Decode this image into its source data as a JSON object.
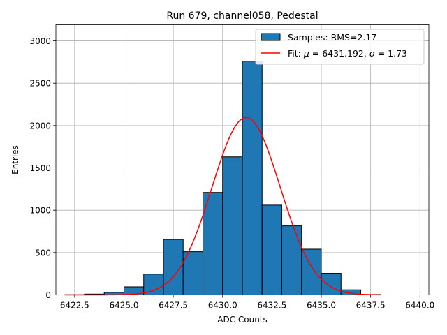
{
  "chart_data": {
    "type": "bar",
    "title": "Run 679, channel058, Pedestal",
    "xlabel": "ADC Counts",
    "ylabel": "Entries",
    "xlim": [
      6421.55,
      6440.45
    ],
    "ylim": [
      0,
      3190
    ],
    "grid": true,
    "legend_placement": "top-right",
    "x_ticks": [
      6422.5,
      6425.0,
      6427.5,
      6430.0,
      6432.5,
      6435.0,
      6437.5,
      6440.0
    ],
    "x_tick_labels": [
      "6422.5",
      "6425.0",
      "6427.5",
      "6430.0",
      "6432.5",
      "6435.0",
      "6437.5",
      "6440.0"
    ],
    "y_ticks": [
      0,
      500,
      1000,
      1500,
      2000,
      2500,
      3000
    ],
    "y_tick_labels": [
      "0",
      "500",
      "1000",
      "1500",
      "2000",
      "2500",
      "3000"
    ],
    "histogram": {
      "name": "Samples: RMS=2.17",
      "color": "#1f77b4",
      "edgecolor": "#000000",
      "bin_edges": [
        6422,
        6423,
        6424,
        6425,
        6426,
        6427,
        6428,
        6429,
        6430,
        6431,
        6432,
        6433,
        6434,
        6435,
        6436,
        6437,
        6438,
        6439,
        6440
      ],
      "counts": [
        2,
        10,
        30,
        95,
        245,
        655,
        510,
        1210,
        1630,
        2760,
        1060,
        815,
        540,
        255,
        60,
        5,
        0,
        0
      ]
    },
    "fit": {
      "name_prefix": "Fit: ",
      "mu_symbol": "μ",
      "mu_text": " = 6431.192, ",
      "sigma_symbol": "σ",
      "sigma_text": " = 1.73",
      "color": "#ff0000",
      "mu": 6431.192,
      "sigma": 1.73,
      "amplitude": 2095,
      "x_range": [
        6422,
        6438
      ]
    }
  }
}
